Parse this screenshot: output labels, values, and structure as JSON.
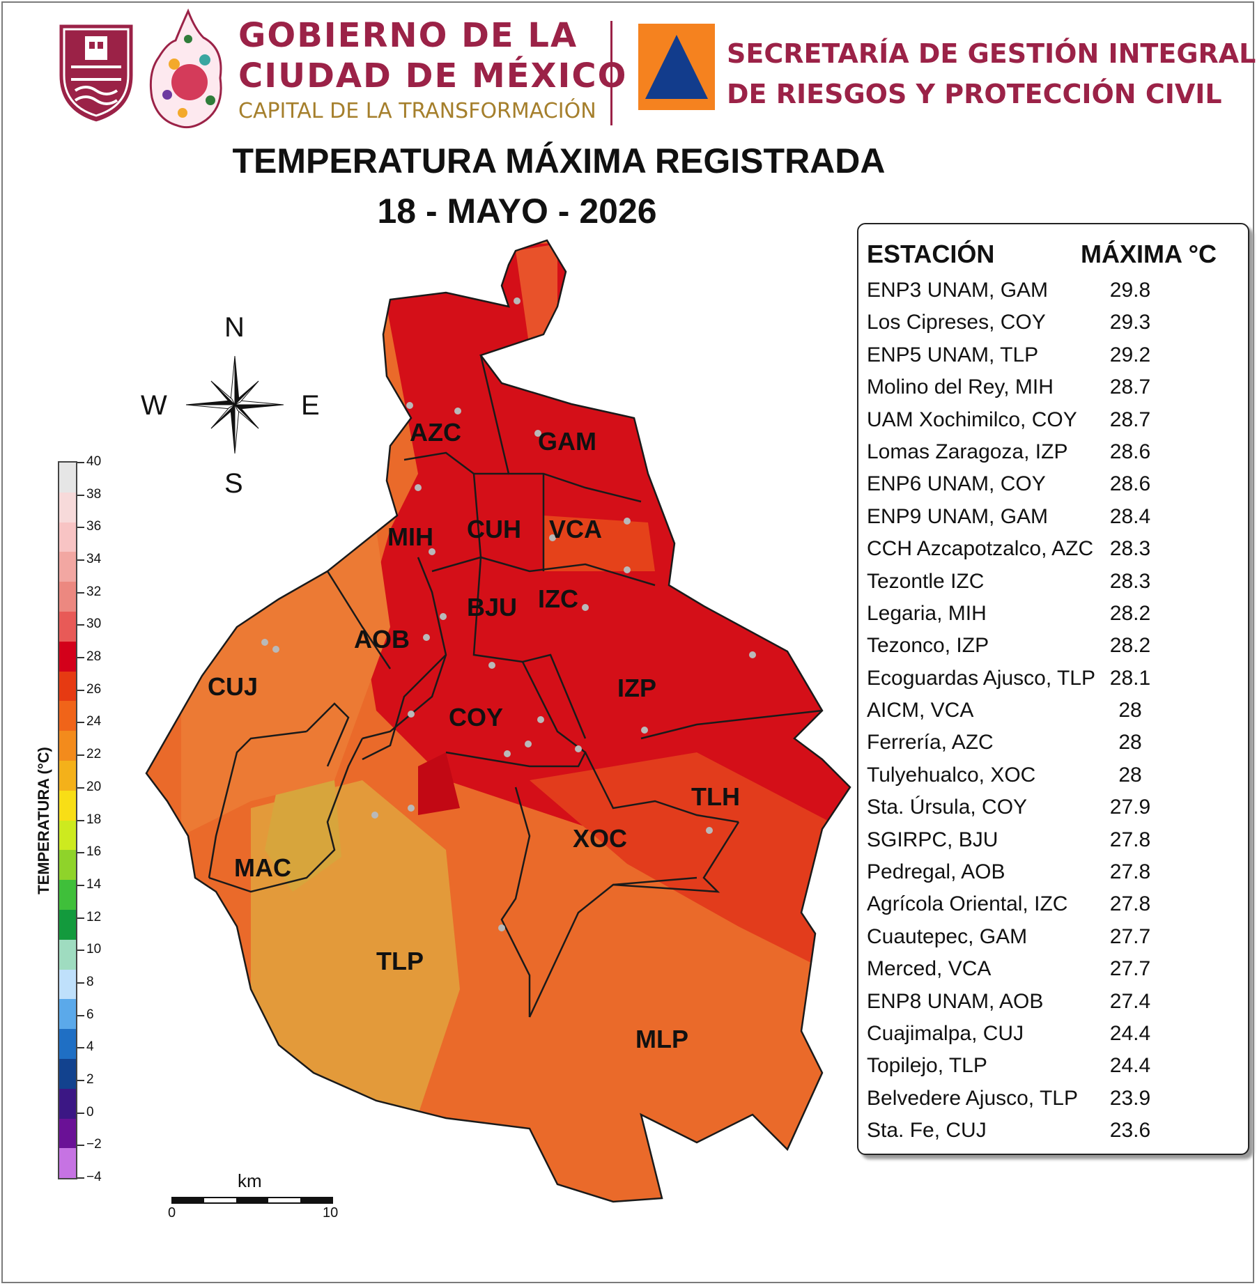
{
  "header": {
    "gov_line1": "GOBIERNO DE LA",
    "gov_line2": "CIUDAD DE MÉXICO",
    "gov_tagline": "CAPITAL DE LA TRANSFORMACIÓN",
    "sec_line1": "SECRETARÍA DE GESTIÓN INTEGRAL",
    "sec_line2": "DE RIESGOS Y PROTECCIÓN CIVIL"
  },
  "title": {
    "line1": "TEMPERATURA MÁXIMA REGISTRADA",
    "line2": "18 - MAYO - 2026"
  },
  "compass": {
    "n": "N",
    "s": "S",
    "e": "E",
    "w": "W",
    "icon": "compass-rose-icon"
  },
  "colorbar": {
    "title": "TEMPERATURA (°C)",
    "ticks": [
      "40",
      "38",
      "36",
      "34",
      "32",
      "30",
      "28",
      "26",
      "24",
      "22",
      "20",
      "18",
      "16",
      "14",
      "12",
      "10",
      "8",
      "6",
      "4",
      "2",
      "0",
      "−2",
      "−4"
    ],
    "colors": [
      "#e6e6e6",
      "#f7dada",
      "#f8c4c4",
      "#f2a7a2",
      "#ec8880",
      "#e85a57",
      "#d3001a",
      "#e63a12",
      "#f06419",
      "#f38b1c",
      "#f4b11a",
      "#f8de16",
      "#cdea1f",
      "#8fd32a",
      "#3fbf3a",
      "#139a3d",
      "#9fdcc0",
      "#bfe0fb",
      "#5ba9ea",
      "#1f6fc4",
      "#12428e",
      "#3b1784",
      "#6a1196",
      "#c673e3"
    ]
  },
  "scale": {
    "unit": "km",
    "min": "0",
    "max": "10"
  },
  "map": {
    "labels": [
      "AZC",
      "GAM",
      "MIH",
      "CUH",
      "VCA",
      "BJU",
      "IZC",
      "AOB",
      "CUJ",
      "IZP",
      "COY",
      "TLH",
      "XOC",
      "MAC",
      "TLP",
      "MLP"
    ],
    "colors": {
      "hot": "#d40f18",
      "warm": "#e8481a",
      "mid": "#ef7a2a",
      "cool": "#e8a33a",
      "border": "#1a1a1a",
      "station": "#b9b9b9"
    }
  },
  "table": {
    "col_station": "ESTACIÓN",
    "col_max": "MÁXIMA °C",
    "rows": [
      {
        "station": "ENP3 UNAM,  GAM",
        "max": "29.8"
      },
      {
        "station": "Los Cipreses, COY",
        "max": "29.3"
      },
      {
        "station": "ENP5 UNAM,  TLP",
        "max": "29.2"
      },
      {
        "station": "Molino del Rey, MIH",
        "max": "28.7"
      },
      {
        "station": "UAM Xochimilco, COY",
        "max": "28.7"
      },
      {
        "station": "Lomas Zaragoza, IZP",
        "max": "28.6"
      },
      {
        "station": "ENP6 UNAM,  COY",
        "max": "28.6"
      },
      {
        "station": "ENP9 UNAM,  GAM",
        "max": "28.4"
      },
      {
        "station": "CCH Azcapotzalco, AZC",
        "max": "28.3"
      },
      {
        "station": "Tezontle IZC",
        "max": "28.3"
      },
      {
        "station": "Legaria, MIH",
        "max": "28.2"
      },
      {
        "station": "Tezonco, IZP",
        "max": "28.2"
      },
      {
        "station": "Ecoguardas Ajusco, TLP",
        "max": "28.1"
      },
      {
        "station": "AICM, VCA",
        "max": "28"
      },
      {
        "station": "Ferrería, AZC",
        "max": "28"
      },
      {
        "station": "Tulyehualco, XOC",
        "max": "28"
      },
      {
        "station": "Sta. Úrsula, COY",
        "max": "27.9"
      },
      {
        "station": "SGIRPC, BJU",
        "max": "27.8"
      },
      {
        "station": "Pedregal, AOB",
        "max": "27.8"
      },
      {
        "station": "Agrícola Oriental, IZC",
        "max": "27.8"
      },
      {
        "station": "Cuautepec, GAM",
        "max": "27.7"
      },
      {
        "station": "Merced, VCA",
        "max": "27.7"
      },
      {
        "station": "ENP8 UNAM,  AOB",
        "max": "27.4"
      },
      {
        "station": "Cuajimalpa, CUJ",
        "max": "24.4"
      },
      {
        "station": "Topilejo, TLP",
        "max": "24.4"
      },
      {
        "station": "Belvedere Ajusco, TLP",
        "max": "23.9"
      },
      {
        "station": "Sta. Fe, CUJ",
        "max": "23.6"
      }
    ]
  }
}
